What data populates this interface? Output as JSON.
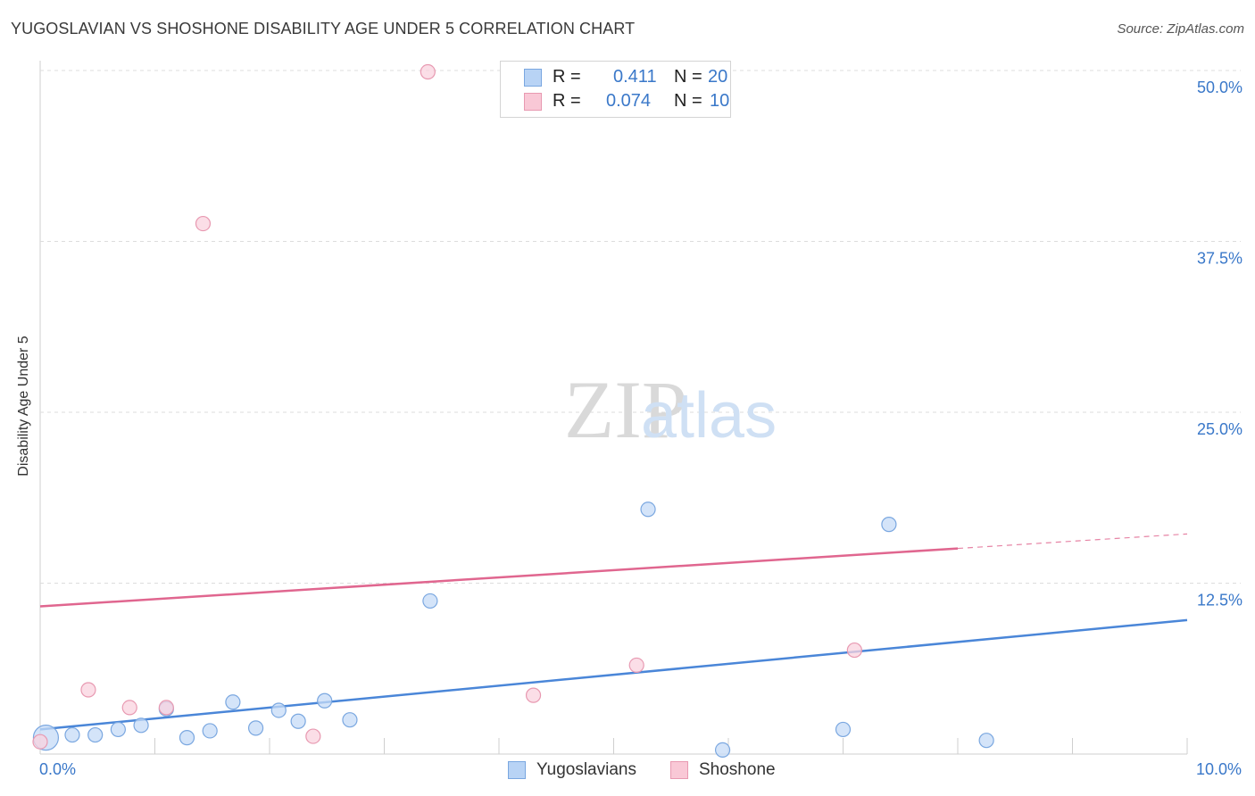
{
  "title": "YUGOSLAVIAN VS SHOSHONE DISABILITY AGE UNDER 5 CORRELATION CHART",
  "source": "Source: ZipAtlas.com",
  "watermark": {
    "zip": "ZIP",
    "atlas": "atlas"
  },
  "legend": {
    "rows": [
      {
        "r_label": "R =",
        "r_value": "0.411",
        "n_label": "N =",
        "n_value": "20",
        "color": "#b8d3f5",
        "border": "#7aa7e0"
      },
      {
        "r_label": "R =",
        "r_value": "0.074",
        "n_label": "N =",
        "n_value": "10",
        "color": "#f9c8d6",
        "border": "#e899b1"
      }
    ]
  },
  "bottom_legend": [
    {
      "label": "Yugoslavians",
      "color": "#b8d3f5",
      "border": "#7aa7e0"
    },
    {
      "label": "Shoshone",
      "color": "#f9c8d6",
      "border": "#e899b1"
    }
  ],
  "chart_data": {
    "type": "scatter",
    "title": "YUGOSLAVIAN VS SHOSHONE DISABILITY AGE UNDER 5 CORRELATION CHART",
    "xlabel": "",
    "ylabel": "Disability Age Under 5",
    "xlim": [
      0,
      10
    ],
    "ylim": [
      0,
      50
    ],
    "x_tick_labels": [
      "0.0%",
      "10.0%"
    ],
    "y_ticks": [
      12.5,
      25.0,
      37.5,
      50.0
    ],
    "y_tick_labels": [
      "12.5%",
      "25.0%",
      "37.5%",
      "50.0%"
    ],
    "grid": true,
    "series": [
      {
        "name": "Yugoslavians",
        "color": "#4a86d8",
        "fill": "#c5dbf7",
        "stroke": "#7aa7e0",
        "points": [
          {
            "x": 0.05,
            "y": 1.2,
            "big": true
          },
          {
            "x": 0.28,
            "y": 1.4
          },
          {
            "x": 0.48,
            "y": 1.4
          },
          {
            "x": 0.68,
            "y": 1.8
          },
          {
            "x": 0.88,
            "y": 2.1
          },
          {
            "x": 1.1,
            "y": 3.3
          },
          {
            "x": 1.28,
            "y": 1.2
          },
          {
            "x": 1.48,
            "y": 1.7
          },
          {
            "x": 1.68,
            "y": 3.8
          },
          {
            "x": 1.88,
            "y": 1.9
          },
          {
            "x": 2.08,
            "y": 3.2
          },
          {
            "x": 2.25,
            "y": 2.4
          },
          {
            "x": 2.48,
            "y": 3.9
          },
          {
            "x": 2.7,
            "y": 2.5
          },
          {
            "x": 3.4,
            "y": 11.2
          },
          {
            "x": 5.3,
            "y": 17.9
          },
          {
            "x": 5.95,
            "y": 0.3
          },
          {
            "x": 7.0,
            "y": 1.8
          },
          {
            "x": 7.4,
            "y": 16.8
          },
          {
            "x": 8.25,
            "y": 1.0
          }
        ],
        "trend": {
          "x0": 0.0,
          "y0": 1.8,
          "x1": 10.0,
          "y1": 9.8,
          "solid_to": 10.0
        }
      },
      {
        "name": "Shoshone",
        "color": "#e0668f",
        "fill": "#fad3df",
        "stroke": "#e899b1",
        "points": [
          {
            "x": 0.0,
            "y": 0.9
          },
          {
            "x": 0.42,
            "y": 4.7
          },
          {
            "x": 0.78,
            "y": 3.4
          },
          {
            "x": 1.1,
            "y": 3.4
          },
          {
            "x": 1.42,
            "y": 38.8
          },
          {
            "x": 2.38,
            "y": 1.3
          },
          {
            "x": 3.38,
            "y": 49.9
          },
          {
            "x": 4.3,
            "y": 4.3
          },
          {
            "x": 5.2,
            "y": 6.5
          },
          {
            "x": 7.1,
            "y": 7.6
          }
        ],
        "trend": {
          "x0": 0.0,
          "y0": 10.8,
          "x1": 10.0,
          "y1": 16.1,
          "solid_to": 8.0
        }
      }
    ]
  }
}
